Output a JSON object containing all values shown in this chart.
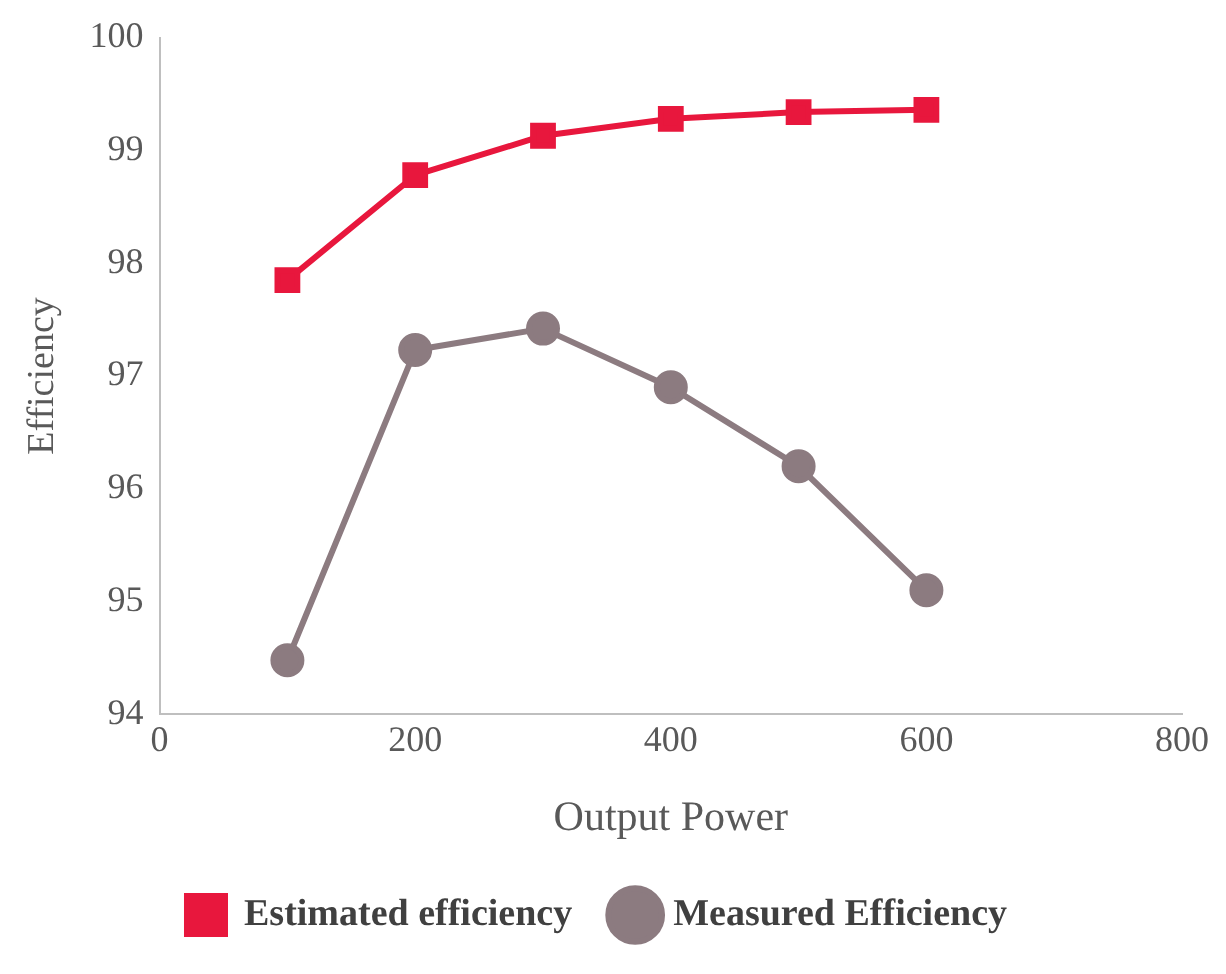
{
  "chart_data": {
    "type": "line",
    "xlabel": "Output Power",
    "ylabel": "Efficiency",
    "x": [
      100,
      200,
      300,
      400,
      500,
      600
    ],
    "xlim": [
      0,
      800
    ],
    "xticks": [
      0,
      200,
      400,
      600,
      800
    ],
    "ylim": [
      94,
      100
    ],
    "yticks": [
      94,
      95,
      96,
      97,
      98,
      99,
      100
    ],
    "grid": false,
    "legend": "bottom",
    "line_style": "solid",
    "series": [
      {
        "name": "Estimated efficiency",
        "color": "#e8173d",
        "marker": "square",
        "values": [
          97.85,
          98.78,
          99.13,
          99.28,
          99.34,
          99.36
        ]
      },
      {
        "name": "Measured Efficiency",
        "color": "#8c7b80",
        "marker": "circle",
        "values": [
          94.48,
          97.23,
          97.42,
          96.9,
          96.2,
          95.1
        ]
      }
    ]
  }
}
